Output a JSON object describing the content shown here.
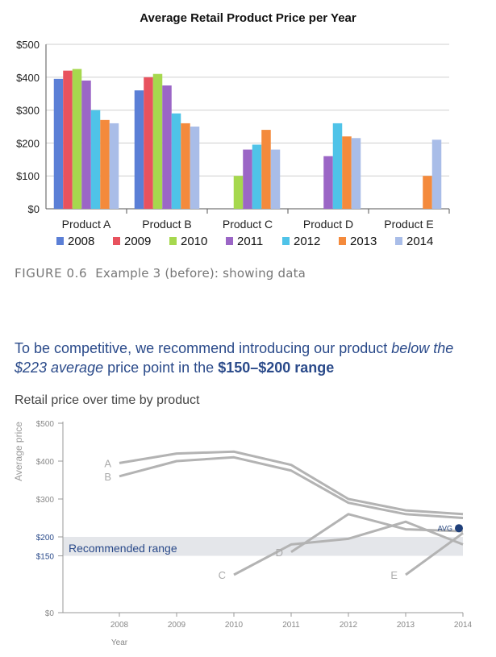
{
  "chart_top": {
    "title": "Average Retail Product Price per Year",
    "type": "bar",
    "categories": [
      "Product A",
      "Product B",
      "Product C",
      "Product D",
      "Product E"
    ],
    "y_ticks": [
      "$0",
      "$100",
      "$200",
      "$300",
      "$400",
      "$500"
    ],
    "ylim": [
      0,
      500
    ],
    "grid": true,
    "legend_position": "bottom",
    "series": [
      {
        "name": "2008",
        "color": "#5b7fd6",
        "values": [
          395,
          360,
          null,
          null,
          null
        ]
      },
      {
        "name": "2009",
        "color": "#e8525e",
        "values": [
          420,
          400,
          null,
          null,
          null
        ]
      },
      {
        "name": "2010",
        "color": "#a6d84e",
        "values": [
          425,
          410,
          100,
          null,
          null
        ]
      },
      {
        "name": "2011",
        "color": "#9b66c6",
        "values": [
          390,
          375,
          180,
          160,
          null
        ]
      },
      {
        "name": "2012",
        "color": "#4fc3e8",
        "values": [
          300,
          290,
          195,
          260,
          null
        ]
      },
      {
        "name": "2013",
        "color": "#f48a3c",
        "values": [
          270,
          260,
          240,
          220,
          100
        ]
      },
      {
        "name": "2014",
        "color": "#a9bde8",
        "values": [
          260,
          250,
          180,
          215,
          210
        ]
      }
    ]
  },
  "caption": {
    "figure": "FIGURE 0.6",
    "text": "Example 3 (before): showing data"
  },
  "headline": {
    "part1": "To be competitive, we recommend introducing our product ",
    "italic": "below the $223 average",
    "part2": " price point in the ",
    "bold": "$150–$200 range"
  },
  "chart_bottom": {
    "title": "Retail price over time by product",
    "type": "line",
    "ylabel": "Average price",
    "xlabel": "Year",
    "x": [
      2008,
      2009,
      2010,
      2011,
      2012,
      2013,
      2014
    ],
    "x_ticks": [
      "2008",
      "2009",
      "2010",
      "2011",
      "2012",
      "2013",
      "2014"
    ],
    "y_ticks": [
      "$0",
      "$150",
      "$200",
      "$300",
      "$400",
      "$500"
    ],
    "ylim": [
      0,
      500
    ],
    "series": [
      {
        "name": "A",
        "values": [
          395,
          420,
          425,
          390,
          300,
          270,
          260
        ]
      },
      {
        "name": "B",
        "values": [
          360,
          400,
          410,
          375,
          290,
          260,
          250
        ]
      },
      {
        "name": "C",
        "values": [
          null,
          null,
          100,
          180,
          195,
          240,
          180
        ]
      },
      {
        "name": "D",
        "values": [
          null,
          null,
          null,
          160,
          260,
          220,
          215
        ]
      },
      {
        "name": "E",
        "values": [
          null,
          null,
          null,
          null,
          null,
          100,
          210
        ]
      }
    ],
    "recommended_range": {
      "label": "Recommended range",
      "from": 150,
      "to": 200
    },
    "average": {
      "label": "AVG",
      "value": 223,
      "color": "#1f3f7a"
    },
    "line_color": "#b3b3b3",
    "band_color": "#e4e6ea",
    "accent_color": "#2a4a8a"
  }
}
